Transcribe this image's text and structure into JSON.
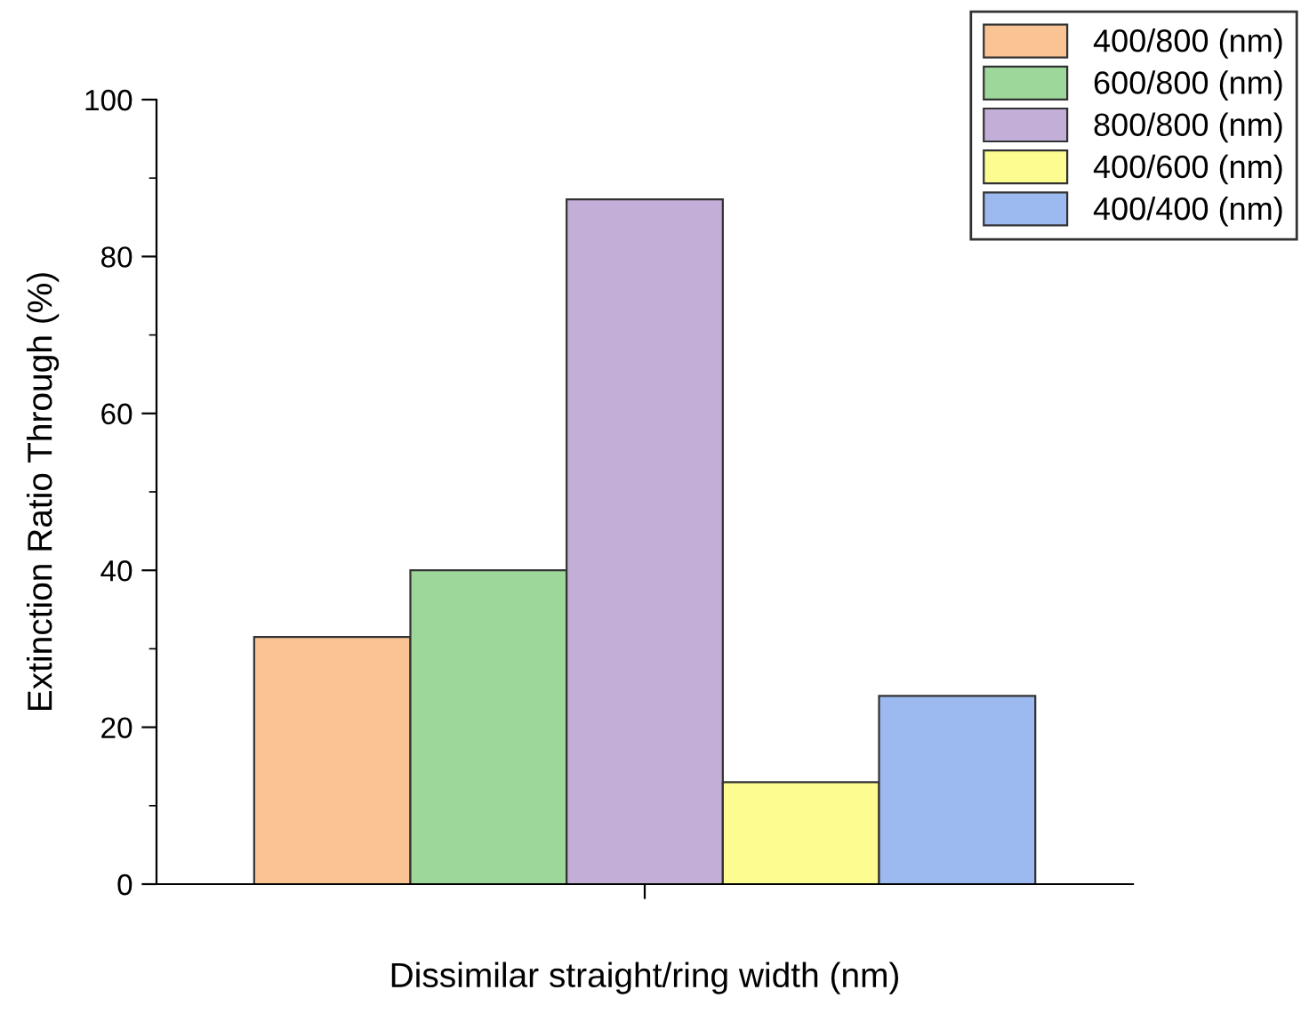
{
  "chart_data": {
    "type": "bar",
    "xlabel": "Dissimilar straight/ring width (nm)",
    "ylabel": "Extinction Ratio Through (%)",
    "categories": [
      null
    ],
    "series": [
      {
        "name": "400/800 (nm)",
        "color": "#f9c394",
        "values": [
          31.5
        ]
      },
      {
        "name": "600/800 (nm)",
        "color": "#9dd79a",
        "values": [
          40
        ]
      },
      {
        "name": "800/800 (nm)",
        "color": "#c2aed6",
        "values": [
          87.3
        ]
      },
      {
        "name": "400/600 (nm)",
        "color": "#fcfc90",
        "values": [
          13
        ]
      },
      {
        "name": "400/400 (nm)",
        "color": "#9dbaf0",
        "values": [
          24
        ]
      }
    ],
    "ylim": [
      0,
      100
    ],
    "yticks": [
      0,
      {
        "value": 10,
        "label": null
      },
      20,
      {
        "value": 30,
        "label": null
      },
      40,
      {
        "value": 50,
        "label": null
      },
      60,
      {
        "value": 70,
        "label": null
      },
      80,
      {
        "value": 90,
        "label": null
      },
      100
    ],
    "grid": false,
    "legend": "top right"
  }
}
